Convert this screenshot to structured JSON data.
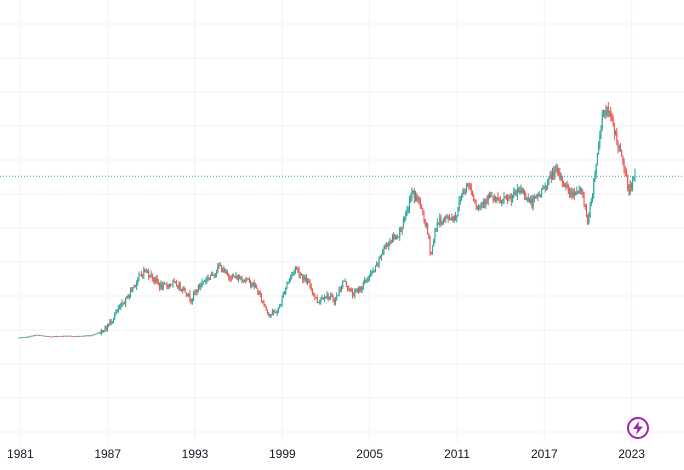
{
  "chart_data": {
    "type": "candlestick",
    "x_ticks": [
      "1981",
      "1987",
      "1993",
      "1999",
      "2005",
      "2011",
      "2017",
      "2023"
    ],
    "x_range": [
      1979.6,
      2026.6
    ],
    "y_range": [
      0,
      100
    ],
    "reference_line": {
      "value": 66,
      "style": "dotted",
      "color": "#26a69a"
    },
    "up_color": "#26a69a",
    "down_color": "#ef5350",
    "grid_color": "#f0f3fa",
    "series": [
      {
        "x": 1980.9,
        "y": 10
      },
      {
        "x": 1981.5,
        "y": 10.3
      },
      {
        "x": 1982.2,
        "y": 11.1
      },
      {
        "x": 1983,
        "y": 10.5
      },
      {
        "x": 1984,
        "y": 10.7
      },
      {
        "x": 1985,
        "y": 10.6
      },
      {
        "x": 1986,
        "y": 11
      },
      {
        "x": 1986.5,
        "y": 12
      },
      {
        "x": 1987,
        "y": 13.5
      },
      {
        "x": 1987.7,
        "y": 19
      },
      {
        "x": 1988.3,
        "y": 23
      },
      {
        "x": 1989.1,
        "y": 30
      },
      {
        "x": 1989.6,
        "y": 33.4
      },
      {
        "x": 1990,
        "y": 32
      },
      {
        "x": 1990.8,
        "y": 27.5
      },
      {
        "x": 1991.5,
        "y": 29
      },
      {
        "x": 1992.3,
        "y": 27.2
      },
      {
        "x": 1992.8,
        "y": 23.5
      },
      {
        "x": 1993.6,
        "y": 29.5
      },
      {
        "x": 1994.3,
        "y": 32
      },
      {
        "x": 1994.8,
        "y": 35
      },
      {
        "x": 1995.2,
        "y": 32
      },
      {
        "x": 1995.8,
        "y": 31
      },
      {
        "x": 1996.5,
        "y": 30.5
      },
      {
        "x": 1997.2,
        "y": 28
      },
      {
        "x": 1997.7,
        "y": 23
      },
      {
        "x": 1998.2,
        "y": 18
      },
      {
        "x": 1998.8,
        "y": 19.5
      },
      {
        "x": 1999.4,
        "y": 29
      },
      {
        "x": 2000,
        "y": 34.5
      },
      {
        "x": 2000.5,
        "y": 31
      },
      {
        "x": 2001,
        "y": 28
      },
      {
        "x": 2001.5,
        "y": 22.5
      },
      {
        "x": 2002,
        "y": 25
      },
      {
        "x": 2002.7,
        "y": 23
      },
      {
        "x": 2003.3,
        "y": 30
      },
      {
        "x": 2003.9,
        "y": 25
      },
      {
        "x": 2004.4,
        "y": 27
      },
      {
        "x": 2005,
        "y": 31
      },
      {
        "x": 2005.5,
        "y": 34
      },
      {
        "x": 2006,
        "y": 40.5
      },
      {
        "x": 2006.5,
        "y": 44
      },
      {
        "x": 2007,
        "y": 45.5
      },
      {
        "x": 2007.5,
        "y": 51
      },
      {
        "x": 2008,
        "y": 60.5
      },
      {
        "x": 2008.5,
        "y": 57
      },
      {
        "x": 2009,
        "y": 48
      },
      {
        "x": 2009.3,
        "y": 39
      },
      {
        "x": 2009.7,
        "y": 50
      },
      {
        "x": 2010.4,
        "y": 51.5
      },
      {
        "x": 2011,
        "y": 52
      },
      {
        "x": 2011.4,
        "y": 60
      },
      {
        "x": 2011.9,
        "y": 63.5
      },
      {
        "x": 2012.5,
        "y": 55
      },
      {
        "x": 2013.2,
        "y": 59
      },
      {
        "x": 2014,
        "y": 57
      },
      {
        "x": 2014.8,
        "y": 58.5
      },
      {
        "x": 2015.5,
        "y": 61.5
      },
      {
        "x": 2016.2,
        "y": 56.5
      },
      {
        "x": 2016.8,
        "y": 60
      },
      {
        "x": 2017.3,
        "y": 64
      },
      {
        "x": 2017.8,
        "y": 68
      },
      {
        "x": 2018.4,
        "y": 64
      },
      {
        "x": 2018.9,
        "y": 60
      },
      {
        "x": 2019.3,
        "y": 61
      },
      {
        "x": 2019.7,
        "y": 60
      },
      {
        "x": 2020.1,
        "y": 50
      },
      {
        "x": 2020.4,
        "y": 61.5
      },
      {
        "x": 2020.8,
        "y": 76
      },
      {
        "x": 2021.1,
        "y": 89
      },
      {
        "x": 2021.5,
        "y": 88
      },
      {
        "x": 2021.8,
        "y": 84
      },
      {
        "x": 2022.2,
        "y": 76
      },
      {
        "x": 2022.6,
        "y": 68
      },
      {
        "x": 2022.9,
        "y": 61.5
      },
      {
        "x": 2023.3,
        "y": 65.5
      }
    ]
  },
  "ui": {
    "flash_icon": "lightning-icon",
    "accent_color": "#9c27b0"
  }
}
